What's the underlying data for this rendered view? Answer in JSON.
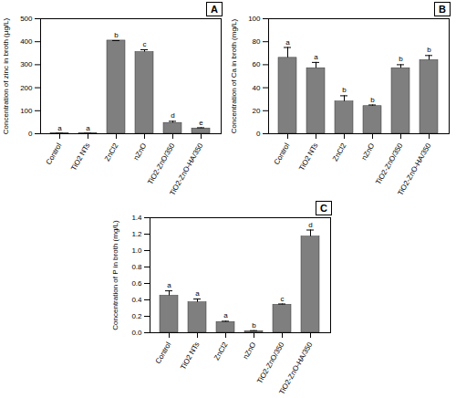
{
  "chart_data": [
    {
      "type": "bar",
      "panel_label": "A",
      "y_label": "Concentration of zinc in broth (µg/L)",
      "categories": [
        "Control",
        "TiO2 NTs",
        "ZnCl2",
        "nZnO",
        "TiO2-ZnO/350",
        "TiO2-ZnO-HA/350"
      ],
      "values": [
        2,
        2,
        405,
        355,
        47,
        23
      ],
      "errors": [
        0,
        0,
        0,
        10,
        7,
        3
      ],
      "letters": [
        "a",
        "a",
        "b",
        "c",
        "d",
        "e"
      ],
      "color": "#7f7f7f",
      "ylim": [
        0,
        500
      ],
      "yticks": [
        0,
        100,
        200,
        300,
        400,
        500
      ]
    },
    {
      "type": "bar",
      "panel_label": "B",
      "y_label": "Concentration of Ca in broth (mg/L)",
      "categories": [
        "Control",
        "TiO2 NTs",
        "ZnCl2",
        "nZnO",
        "TiO2-ZnO/350",
        "TiO2-ZnO-HA/350"
      ],
      "values": [
        66,
        57,
        28,
        24,
        57,
        64
      ],
      "errors": [
        9,
        5,
        5,
        1,
        3,
        4
      ],
      "letters": [
        "a",
        "a",
        "b",
        "b",
        "b",
        "b"
      ],
      "color": "#7f7f7f",
      "ylim": [
        0,
        100
      ],
      "yticks": [
        0,
        20,
        40,
        60,
        80,
        100
      ]
    },
    {
      "type": "bar",
      "panel_label": "C",
      "y_label": "Concentration of P in broth (mg/L)",
      "categories": [
        "Control",
        "TiO2 NTs",
        "ZnCl2",
        "nZnO",
        "TiO2-ZnO/350",
        "TiO2-ZnO-HA/350"
      ],
      "values": [
        0.45,
        0.37,
        0.13,
        0.02,
        0.34,
        1.17
      ],
      "errors": [
        0.06,
        0.04,
        0.01,
        0.005,
        0.01,
        0.08
      ],
      "letters": [
        "a",
        "a",
        "a",
        "b",
        "c",
        "d"
      ],
      "color": "#7f7f7f",
      "ylim": [
        0,
        1.4
      ],
      "yticks": [
        {
          "value": 0,
          "label": "0.0"
        },
        {
          "value": 0.2,
          "label": "0.2"
        },
        {
          "value": 0.4,
          "label": "0.4"
        },
        {
          "value": 0.6,
          "label": "0.6"
        },
        {
          "value": 0.8,
          "label": "0.8"
        },
        {
          "value": 1,
          "label": "1.0"
        },
        {
          "value": 1.2,
          "label": "1.2"
        },
        {
          "value": 1.4,
          "label": "1.4"
        }
      ]
    }
  ]
}
